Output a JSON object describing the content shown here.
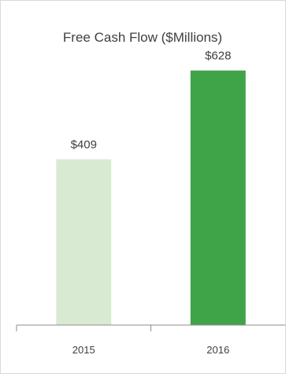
{
  "chart_data": {
    "type": "bar",
    "title": "Free Cash Flow ($Millions)",
    "categories": [
      "2015",
      "2016"
    ],
    "values": [
      409,
      628
    ],
    "value_labels": [
      "$409",
      "$628"
    ],
    "bar_colors": [
      "#d9ead3",
      "#3fa347"
    ],
    "ylim": [
      0,
      800
    ],
    "grid": false,
    "legend": "none"
  }
}
